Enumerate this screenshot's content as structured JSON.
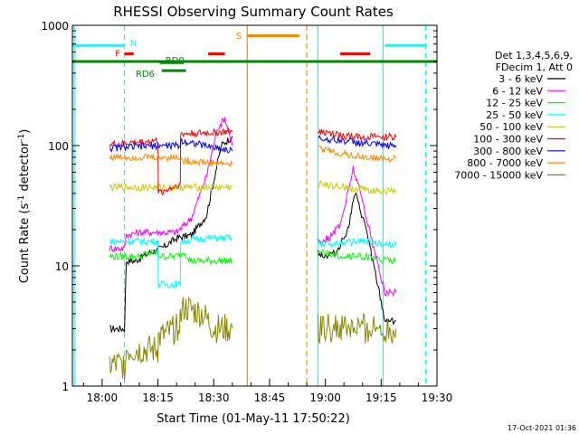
{
  "chart_data": {
    "type": "line",
    "title": "RHESSI Observing Summary Count Rates",
    "xlabel": "Start Time (01-May-11 17:50:22)",
    "ylabel_main": "Count Rate (s",
    "ylabel_sup": "-1",
    "ylabel_tail": " detector",
    "ylabel_close": ")",
    "yscale": "log",
    "ylim": [
      1,
      1000
    ],
    "xlim_minutes": [
      -8,
      90
    ],
    "x_ticks": [
      {
        "t": 0,
        "label": "18:00"
      },
      {
        "t": 15,
        "label": "18:15"
      },
      {
        "t": 30,
        "label": "18:30"
      },
      {
        "t": 45,
        "label": "18:45"
      },
      {
        "t": 60,
        "label": "19:00"
      },
      {
        "t": 75,
        "label": "19:15"
      },
      {
        "t": 90,
        "label": "19:30"
      }
    ],
    "y_ticks": [
      {
        "v": 1,
        "label": "1"
      },
      {
        "v": 10,
        "label": "10"
      },
      {
        "v": 100,
        "label": "100"
      },
      {
        "v": 1000,
        "label": "1000"
      }
    ],
    "legend_header": [
      "Det 1,3,4,5,6,9,",
      "FDecim 1, Att 0"
    ],
    "legend_placement": "right",
    "series": [
      {
        "name": "3 - 6 keV",
        "color": "#000000",
        "x": [
          2,
          6,
          6.5,
          9,
          11,
          13,
          16,
          20,
          24,
          28,
          32,
          35
        ],
        "y": [
          3,
          3,
          11,
          11,
          12,
          13,
          14,
          17,
          18,
          26,
          100,
          120
        ]
      },
      {
        "name": "6 - 12 keV",
        "color": "#ff00ff",
        "x": [
          2,
          6,
          6.5,
          10,
          15,
          20,
          24,
          28,
          31,
          33,
          35
        ],
        "y": [
          14,
          14,
          18,
          19,
          19,
          19,
          25,
          55,
          140,
          170,
          100
        ]
      },
      {
        "name": "12 - 25 keV",
        "color": "#00ff00",
        "x": [
          2,
          6,
          6.5,
          10,
          14,
          16,
          20,
          22,
          24,
          30,
          35
        ],
        "y": [
          12,
          12,
          12,
          12,
          13,
          12,
          12,
          13,
          11,
          11,
          11
        ]
      },
      {
        "name": "25 - 50 keV",
        "color": "#00ffff",
        "x": [
          2,
          15,
          15.1,
          21,
          21.1,
          28,
          35
        ],
        "y": [
          16,
          16,
          7,
          7,
          16,
          17,
          17
        ]
      },
      {
        "name": "50 - 100 keV",
        "color": "#cccc00",
        "x": [
          2,
          15,
          15.1,
          21,
          21.1,
          35
        ],
        "y": [
          45,
          45,
          45,
          45,
          45,
          45
        ]
      },
      {
        "name": "100 - 300 keV",
        "color": "#ff0000",
        "x": [
          2,
          15,
          15.1,
          21,
          21.1,
          35
        ],
        "y": [
          102,
          110,
          40,
          48,
          125,
          130
        ]
      },
      {
        "name": "300 - 800 keV",
        "color": "#0000ff",
        "x": [
          2,
          15,
          15.1,
          21,
          21.1,
          35
        ],
        "y": [
          95,
          100,
          100,
          100,
          110,
          90
        ]
      },
      {
        "name": "800 - 7000 keV",
        "color": "#ff8800",
        "x": [
          2,
          15,
          15.1,
          21,
          21.1,
          35
        ],
        "y": [
          80,
          80,
          80,
          80,
          75,
          70
        ]
      },
      {
        "name": "7000 - 15000 keV",
        "color": "#888800",
        "x": [
          2,
          6,
          6.5,
          15,
          15.1,
          20,
          22,
          27,
          30,
          35
        ],
        "y": [
          1.5,
          1.5,
          2,
          2,
          2.5,
          3,
          4.5,
          4,
          3,
          3
        ]
      }
    ],
    "series_second_orbit": [
      {
        "color": "#000000",
        "x": [
          58,
          60,
          63,
          66,
          68,
          71,
          73,
          76,
          79
        ],
        "y": [
          13,
          12,
          13,
          20,
          40,
          20,
          10,
          3.5,
          3.5
        ]
      },
      {
        "color": "#ff00ff",
        "x": [
          58,
          61,
          64,
          66,
          67.5,
          70,
          73,
          76,
          79
        ],
        "y": [
          16,
          17,
          22,
          40,
          65,
          35,
          14,
          6,
          6
        ]
      },
      {
        "color": "#00ff00",
        "x": [
          58,
          65,
          70,
          76,
          79
        ],
        "y": [
          13,
          12,
          12,
          11,
          11
        ]
      },
      {
        "color": "#00ffff",
        "x": [
          58,
          70,
          76,
          79
        ],
        "y": [
          15,
          16,
          15,
          15
        ]
      },
      {
        "color": "#cccc00",
        "x": [
          58,
          65,
          70,
          76,
          79
        ],
        "y": [
          48,
          45,
          43,
          42,
          42
        ]
      },
      {
        "color": "#ff0000",
        "x": [
          58,
          65,
          70,
          76,
          79
        ],
        "y": [
          130,
          120,
          118,
          118,
          118
        ]
      },
      {
        "color": "#0000ff",
        "x": [
          58,
          65,
          70,
          76,
          79
        ],
        "y": [
          115,
          110,
          105,
          100,
          100
        ]
      },
      {
        "color": "#ff8800",
        "x": [
          58,
          65,
          70,
          76,
          79
        ],
        "y": [
          95,
          85,
          80,
          78,
          78
        ]
      },
      {
        "color": "#888800",
        "x": [
          58,
          65,
          70,
          76,
          79
        ],
        "y": [
          3,
          3,
          3,
          3,
          3
        ]
      }
    ],
    "flag_bars": [
      {
        "label": "N",
        "color": "#00ffff",
        "x": [
          -8,
          6
        ],
        "y": 680,
        "label_t": 7.5,
        "label_y": 720
      },
      {
        "label": "N",
        "color": "#00ffff",
        "x": [
          76,
          87
        ],
        "y": 680,
        "label_t": null,
        "label_y": null
      },
      {
        "label": "F",
        "color": "#ff0000",
        "x": [
          6,
          8.5
        ],
        "y": 580,
        "label_t": 3.5,
        "label_y": 590
      },
      {
        "label": "RD0",
        "color": "#008800",
        "x": [
          15.5,
          22
        ],
        "y": 490,
        "label_t": 17,
        "label_y": 520
      },
      {
        "label": "RD6",
        "color": "#008800",
        "x": [
          16,
          22.5
        ],
        "y": 420,
        "label_t": 9,
        "label_y": 400
      },
      {
        "label": "",
        "color": "#ff0000",
        "x": [
          28.5,
          33
        ],
        "y": 580,
        "label_t": null,
        "label_y": null
      },
      {
        "label": "S",
        "color": "#ff8800",
        "x": [
          39,
          53
        ],
        "y": 820,
        "label_t": 36,
        "label_y": 830
      },
      {
        "label": "",
        "color": "#ff0000",
        "x": [
          64,
          72
        ],
        "y": 580,
        "label_t": null,
        "label_y": null
      },
      {
        "label": "",
        "color": "#008800",
        "x": [
          -8,
          90
        ],
        "y": 500,
        "label_t": null,
        "label_y": null
      }
    ],
    "vertical_lines": [
      {
        "t": -7.5,
        "color": "#00ffff",
        "dashed": false
      },
      {
        "t": 6,
        "color": "#00ffff",
        "dashed": true
      },
      {
        "t": 39,
        "color": "#ff8800",
        "dashed": false
      },
      {
        "t": 55,
        "color": "#ff8800",
        "dashed": true
      },
      {
        "t": 58,
        "color": "#00ffff",
        "dashed": false
      },
      {
        "t": 75.5,
        "color": "#00ffff",
        "dashed": false
      },
      {
        "t": 87,
        "color": "#00ffff",
        "dashed": true
      }
    ],
    "grid": false
  },
  "footer_date": "17-Oct-2021 01:36"
}
